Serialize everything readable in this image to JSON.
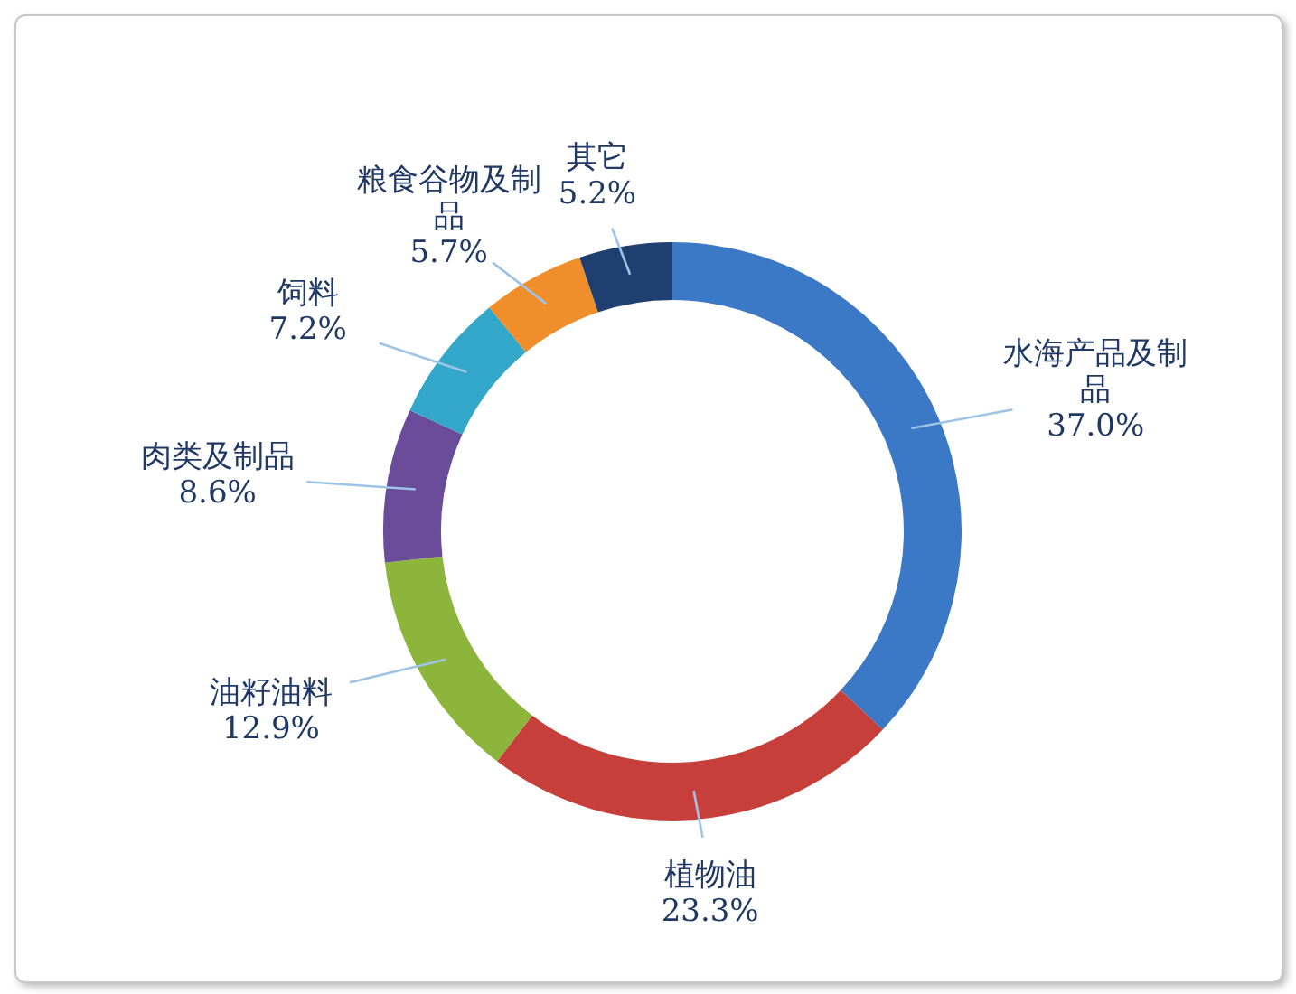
{
  "chart_data": {
    "type": "donut",
    "categories": [
      "水海产品及制品",
      "植物油",
      "油籽油料",
      "肉类及制品",
      "饲料",
      "粮食谷物及制品",
      "其它"
    ],
    "values": [
      37.0,
      23.3,
      12.9,
      8.6,
      7.2,
      5.7,
      5.2
    ],
    "value_labels": [
      "37.0%",
      "23.3%",
      "12.9%",
      "8.6%",
      "7.2%",
      "5.7%",
      "5.2%"
    ],
    "colors": [
      "#3b78c6",
      "#c73f3a",
      "#8db53c",
      "#6b4c9a",
      "#33a7c9",
      "#ef8e2b",
      "#1f3f70"
    ],
    "legend": false
  }
}
